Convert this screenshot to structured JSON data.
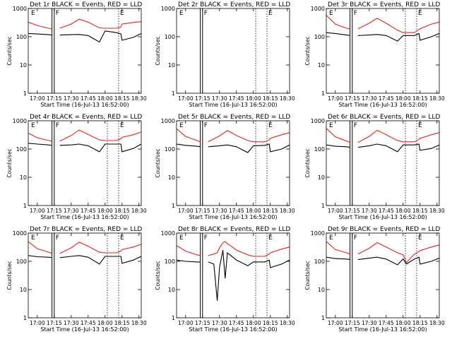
{
  "colors": {
    "events": "#000000",
    "lld": "#e8231e",
    "frame": "#000000",
    "background": "#ffffff"
  },
  "common": {
    "ylabel": "Counts/sec",
    "xlabel": "Start Time (16-Jul-13 16:52:00)",
    "x_ticks": [
      "17:00",
      "17:15",
      "17:30",
      "17:45",
      "18:00",
      "18:15",
      "18:30"
    ],
    "y_ticks": [
      "1",
      "10",
      "100",
      "1000"
    ],
    "markers": [
      "E",
      "F",
      "E"
    ]
  },
  "chart_data": [
    {
      "type": "line",
      "title": "Det 1r BLACK = Events, RED = LLD",
      "x_range": [
        "16:52",
        "18:32"
      ],
      "y_scale": "log",
      "ylim": [
        1,
        1000
      ],
      "x": [
        "16:52",
        "17:00",
        "17:10",
        "17:13",
        "17:15",
        "17:20",
        "17:30",
        "17:37",
        "17:45",
        "17:55",
        "18:00",
        "18:10",
        "18:14",
        "18:15",
        "18:25",
        "18:32"
      ],
      "series": [
        {
          "name": "Events",
          "values": [
            130,
            125,
            118,
            115,
            null,
            115,
            118,
            120,
            110,
            65,
            160,
            140,
            125,
            75,
            95,
            130
          ]
        },
        {
          "name": "LLD",
          "values": [
            330,
            250,
            200,
            190,
            null,
            200,
            280,
            420,
            330,
            205,
            200,
            200,
            220,
            280,
            320,
            340
          ]
        }
      ],
      "gaps": [
        [
          "17:13",
          "17:15"
        ]
      ],
      "dotted_lines": [
        "18:12"
      ]
    },
    {
      "type": "line",
      "title": "Det 2r BLACK = Events, RED = LLD",
      "x_range": [
        "16:52",
        "18:32"
      ],
      "y_scale": "log",
      "ylim": [
        1,
        1000
      ],
      "x": [],
      "series": [
        {
          "name": "Events",
          "values": []
        },
        {
          "name": "LLD",
          "values": []
        }
      ],
      "gaps": [
        [
          "17:13",
          "17:15"
        ]
      ],
      "dotted_lines": [
        "18:02",
        "18:12"
      ]
    },
    {
      "type": "line",
      "title": "Det 3r BLACK = Events, RED = LLD",
      "x_range": [
        "16:52",
        "18:32"
      ],
      "y_scale": "log",
      "ylim": [
        1,
        1000
      ],
      "x": [
        "16:52",
        "17:00",
        "17:10",
        "17:13",
        "17:15",
        "17:20",
        "17:30",
        "17:37",
        "17:45",
        "17:55",
        "18:00",
        "18:10",
        "18:14",
        "18:15",
        "18:25",
        "18:32"
      ],
      "series": [
        {
          "name": "Events",
          "values": [
            140,
            130,
            115,
            110,
            null,
            110,
            115,
            120,
            110,
            70,
            110,
            110,
            130,
            75,
            100,
            130
          ]
        },
        {
          "name": "LLD",
          "values": [
            580,
            280,
            200,
            190,
            null,
            190,
            300,
            450,
            300,
            170,
            140,
            140,
            180,
            190,
            280,
            330
          ]
        }
      ],
      "gaps": [
        [
          "17:13",
          "17:15"
        ]
      ],
      "dotted_lines": [
        "18:02",
        "18:12"
      ]
    },
    {
      "type": "line",
      "title": "Det 4r BLACK = Events, RED = LLD",
      "x_range": [
        "16:52",
        "18:32"
      ],
      "y_scale": "log",
      "ylim": [
        1,
        1000
      ],
      "x": [
        "16:52",
        "17:00",
        "17:10",
        "17:13",
        "17:15",
        "17:20",
        "17:30",
        "17:37",
        "17:45",
        "17:55",
        "18:00",
        "18:10",
        "18:14",
        "18:15",
        "18:25",
        "18:32"
      ],
      "series": [
        {
          "name": "Events",
          "values": [
            160,
            150,
            140,
            135,
            null,
            135,
            140,
            150,
            130,
            80,
            150,
            150,
            150,
            80,
            105,
            150
          ]
        },
        {
          "name": "LLD",
          "values": [
            370,
            250,
            200,
            190,
            null,
            190,
            300,
            470,
            330,
            210,
            200,
            200,
            230,
            260,
            320,
            400
          ]
        }
      ],
      "gaps": [
        [
          "17:13",
          "17:15"
        ]
      ],
      "dotted_lines": [
        "18:02",
        "18:12"
      ]
    },
    {
      "type": "line",
      "title": "Det 5r BLACK = Events, RED = LLD",
      "x_range": [
        "16:52",
        "18:32"
      ],
      "y_scale": "log",
      "ylim": [
        1,
        1000
      ],
      "x": [
        "16:52",
        "17:00",
        "17:10",
        "17:13",
        "17:15",
        "17:20",
        "17:30",
        "17:37",
        "17:45",
        "17:55",
        "18:00",
        "18:10",
        "18:14",
        "18:15",
        "18:25",
        "18:32"
      ],
      "series": [
        {
          "name": "Events",
          "values": [
            150,
            135,
            125,
            120,
            null,
            120,
            130,
            140,
            120,
            75,
            130,
            135,
            150,
            80,
            100,
            140
          ]
        },
        {
          "name": "LLD",
          "values": [
            520,
            280,
            200,
            180,
            null,
            180,
            290,
            450,
            300,
            200,
            180,
            180,
            210,
            240,
            320,
            380
          ]
        }
      ],
      "gaps": [
        [
          "17:13",
          "17:15"
        ]
      ],
      "dotted_lines": [
        "18:02",
        "18:12"
      ]
    },
    {
      "type": "line",
      "title": "Det 6r BLACK = Events, RED = LLD",
      "x_range": [
        "16:52",
        "18:32"
      ],
      "y_scale": "log",
      "ylim": [
        1,
        1000
      ],
      "x": [
        "16:52",
        "17:00",
        "17:10",
        "17:13",
        "17:15",
        "17:20",
        "17:30",
        "17:37",
        "17:45",
        "17:55",
        "18:00",
        "18:10",
        "18:14",
        "18:15",
        "18:25",
        "18:32"
      ],
      "series": [
        {
          "name": "Events",
          "values": [
            140,
            125,
            120,
            115,
            null,
            115,
            130,
            150,
            130,
            80,
            140,
            140,
            150,
            90,
            105,
            140
          ]
        },
        {
          "name": "LLD",
          "values": [
            540,
            270,
            190,
            170,
            null,
            170,
            280,
            460,
            320,
            200,
            180,
            180,
            220,
            240,
            320,
            380
          ]
        }
      ],
      "gaps": [
        [
          "17:13",
          "17:15"
        ]
      ],
      "dotted_lines": [
        "18:02",
        "18:12"
      ]
    },
    {
      "type": "line",
      "title": "Det 7r BLACK = Events, RED = LLD",
      "x_range": [
        "16:52",
        "18:32"
      ],
      "y_scale": "log",
      "ylim": [
        1,
        1000
      ],
      "x": [
        "16:52",
        "17:00",
        "17:10",
        "17:13",
        "17:15",
        "17:20",
        "17:30",
        "17:37",
        "17:45",
        "17:55",
        "18:00",
        "18:10",
        "18:14",
        "18:15",
        "18:25",
        "18:32"
      ],
      "series": [
        {
          "name": "Events",
          "values": [
            160,
            145,
            140,
            135,
            null,
            135,
            150,
            160,
            140,
            80,
            150,
            150,
            150,
            85,
            110,
            150
          ]
        },
        {
          "name": "LLD",
          "values": [
            500,
            280,
            210,
            190,
            null,
            190,
            300,
            480,
            340,
            210,
            200,
            200,
            230,
            260,
            320,
            400
          ]
        }
      ],
      "gaps": [
        [
          "17:13",
          "17:15"
        ]
      ],
      "dotted_lines": [
        "18:02",
        "18:12"
      ]
    },
    {
      "type": "line",
      "title": "Det 8r BLACK = Events, RED = LLD",
      "x_range": [
        "16:52",
        "18:32"
      ],
      "y_scale": "log",
      "ylim": [
        1,
        1000
      ],
      "x": [
        "16:52",
        "17:00",
        "17:10",
        "17:13",
        "17:15",
        "17:20",
        "17:25",
        "17:28",
        "17:30",
        "17:33",
        "17:35",
        "17:37",
        "17:40",
        "17:45",
        "17:55",
        "18:00",
        "18:10",
        "18:14",
        "18:15",
        "18:25",
        "18:32"
      ],
      "series": [
        {
          "name": "Events",
          "values": [
            110,
            100,
            95,
            95,
            null,
            95,
            80,
            4,
            60,
            250,
            25,
            200,
            160,
            110,
            70,
            95,
            95,
            110,
            60,
            80,
            110
          ]
        },
        {
          "name": "LLD",
          "values": [
            360,
            230,
            170,
            160,
            null,
            160,
            180,
            200,
            300,
            450,
            500,
            420,
            350,
            250,
            170,
            150,
            150,
            180,
            200,
            270,
            320
          ]
        }
      ],
      "gaps": [
        [
          "17:13",
          "17:15"
        ]
      ],
      "dotted_lines": [
        "18:02",
        "18:12"
      ]
    },
    {
      "type": "line",
      "title": "Det 9r BLACK = Events, RED = LLD",
      "x_range": [
        "16:52",
        "18:32"
      ],
      "y_scale": "log",
      "ylim": [
        1,
        1000
      ],
      "x": [
        "16:52",
        "17:00",
        "17:10",
        "17:13",
        "17:15",
        "17:20",
        "17:30",
        "17:37",
        "17:45",
        "17:55",
        "18:00",
        "18:03",
        "18:10",
        "18:14",
        "18:15",
        "18:25",
        "18:32"
      ],
      "series": [
        {
          "name": "Events",
          "values": [
            140,
            125,
            120,
            115,
            null,
            115,
            130,
            140,
            120,
            75,
            120,
            80,
            120,
            140,
            80,
            100,
            130
          ]
        },
        {
          "name": "LLD",
          "values": [
            500,
            260,
            200,
            180,
            null,
            180,
            290,
            460,
            320,
            200,
            170,
            90,
            180,
            220,
            240,
            320,
            380
          ]
        }
      ],
      "gaps": [
        [
          "17:13",
          "17:15"
        ]
      ],
      "dotted_lines": [
        "18:02",
        "18:12"
      ]
    }
  ]
}
